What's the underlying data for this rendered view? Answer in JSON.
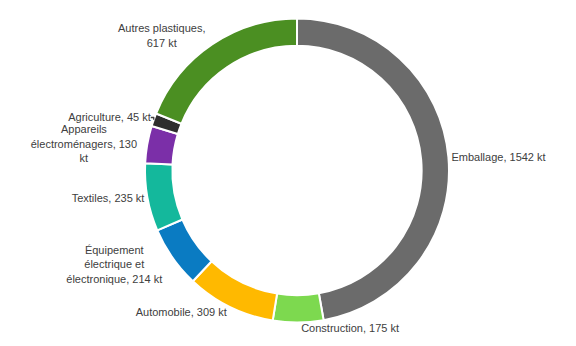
{
  "chart_data": {
    "type": "pie",
    "categories": [
      "Emballage",
      "Construction",
      "Automobile",
      "Équipement électrique et électronique",
      "Textiles",
      "Appareils électroménagers",
      "Agriculture",
      "Autres plastiques"
    ],
    "values": [
      1542,
      175,
      309,
      214,
      235,
      130,
      45,
      617
    ],
    "value_labels": [
      "Emballage, 1542 kt",
      "Construction, 175 kt",
      "Automobile, 309 kt",
      "Équipement électrique et électronique, 214 kt",
      "Textiles, 235 kt",
      "Appareils électroménagers, 130 kt",
      "Agriculture, 45 kt",
      "Autres plastiques, 617 kt"
    ],
    "colors": [
      "#6b6b6b",
      "#7dd94f",
      "#ffb900",
      "#0a7bc2",
      "#14b89c",
      "#7b2fa8",
      "#2e2e2e",
      "#4b8f22"
    ],
    "data_labels": true
  }
}
